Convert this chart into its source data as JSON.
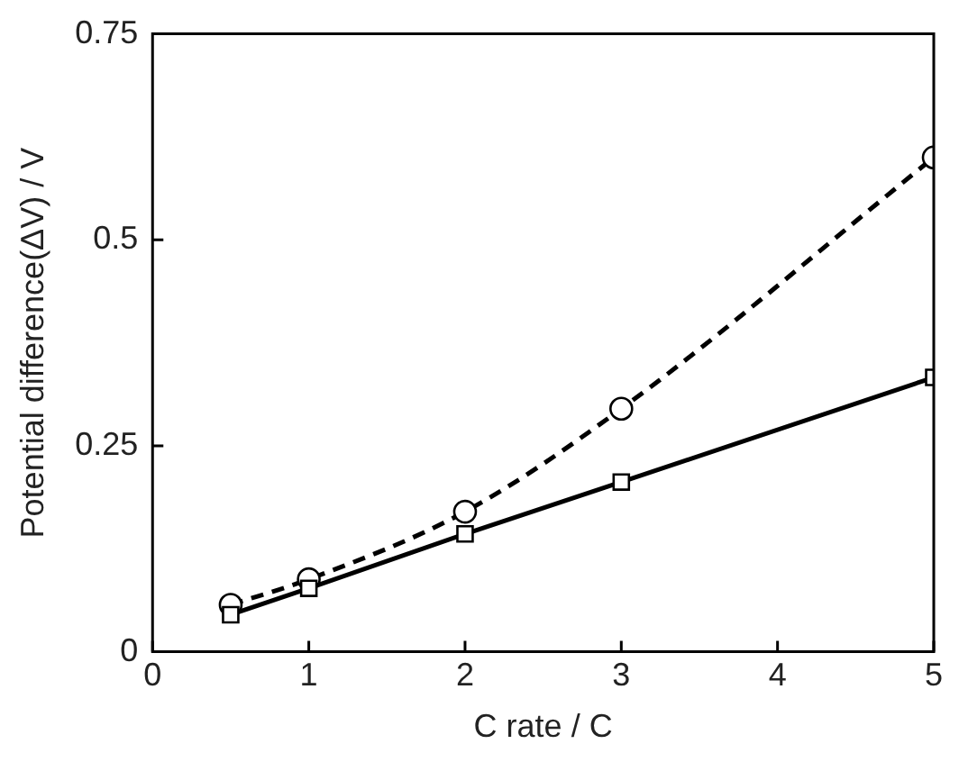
{
  "chart_data": {
    "type": "line",
    "xlabel": "C rate / C",
    "ylabel": "Potential difference(ΔV) / V",
    "x": [
      0.5,
      1,
      2,
      3,
      5
    ],
    "series": [
      {
        "color": "#000000",
        "values": [
          0.057,
          0.088,
          0.17,
          0.295,
          0.6
        ],
        "marker": "circle",
        "line_style": "dashed"
      },
      {
        "color": "#000000",
        "values": [
          0.045,
          0.077,
          0.143,
          0.206,
          0.333
        ],
        "marker": "square",
        "line_style": "solid"
      }
    ],
    "xlim": [
      0,
      5
    ],
    "xticks": [
      0,
      1,
      2,
      3,
      4,
      5
    ],
    "ylim": [
      0,
      0.75
    ],
    "yticks": [
      0,
      0.25,
      0.5,
      0.75
    ]
  }
}
